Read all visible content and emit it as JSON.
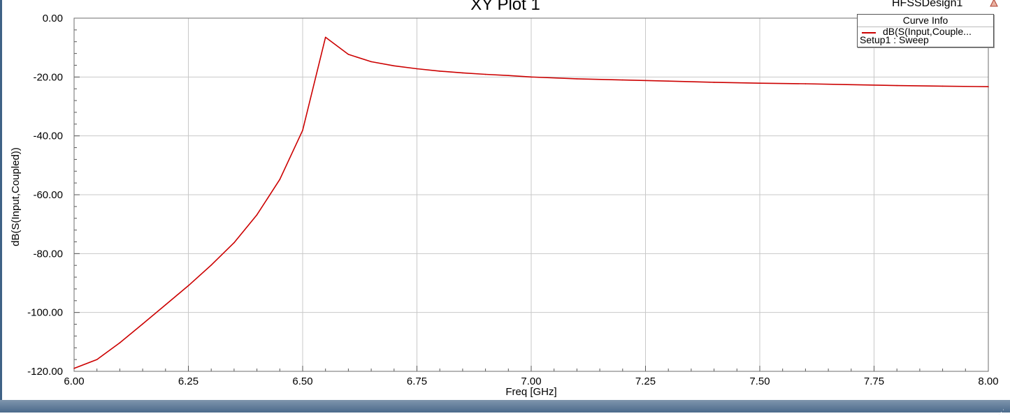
{
  "design_name": "HFSSDesign1",
  "legend": {
    "header": "Curve Info",
    "series_label": "dB(S(Input,Couple...",
    "setup_label": "Setup1 : Sweep"
  },
  "colors": {
    "series": "#cc0000",
    "grid": "#c8c8c8",
    "frame": "#3f6286"
  },
  "icons": [
    "warning-icon"
  ],
  "chart_data": {
    "type": "line",
    "title": "XY Plot 1",
    "xlabel": "Freq [GHz]",
    "ylabel": "dB(S(Input,Coupled))",
    "xlim": [
      6.0,
      8.0
    ],
    "ylim": [
      -120.0,
      0.0
    ],
    "x_ticks": [
      "6.00",
      "6.25",
      "6.50",
      "6.75",
      "7.00",
      "7.25",
      "7.50",
      "7.75",
      "8.00"
    ],
    "y_ticks": [
      "0.00",
      "-20.00",
      "-40.00",
      "-60.00",
      "-80.00",
      "-100.00",
      "-120.00"
    ],
    "grid": true,
    "legend_position": "top-right",
    "series": [
      {
        "name": "dB(S(Input,Coupled))",
        "x": [
          6.0,
          6.05,
          6.1,
          6.15,
          6.2,
          6.25,
          6.3,
          6.35,
          6.4,
          6.45,
          6.5,
          6.55,
          6.6,
          6.65,
          6.7,
          6.75,
          6.8,
          6.85,
          6.9,
          6.95,
          7.0,
          7.1,
          7.2,
          7.3,
          7.4,
          7.5,
          7.6,
          7.7,
          7.8,
          7.9,
          8.0
        ],
        "y": [
          -119.0,
          -116.0,
          -110.3,
          -103.9,
          -97.4,
          -90.9,
          -83.9,
          -76.3,
          -66.8,
          -54.8,
          -38.1,
          -6.5,
          -12.3,
          -14.8,
          -16.2,
          -17.2,
          -18.0,
          -18.6,
          -19.1,
          -19.5,
          -20.0,
          -20.6,
          -21.0,
          -21.4,
          -21.8,
          -22.1,
          -22.3,
          -22.6,
          -22.9,
          -23.1,
          -23.3
        ]
      }
    ]
  }
}
